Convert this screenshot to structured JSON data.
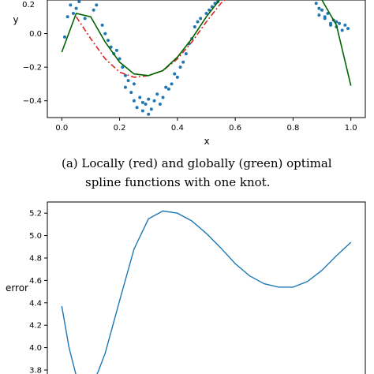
{
  "caption": {
    "line1": "(a) Locally (red) and globally (green) optimal",
    "line2": "spline functions with one knot."
  },
  "chart_data": [
    {
      "type": "scatter",
      "xlabel": "x",
      "ylabel": "y",
      "xlim": [
        -0.05,
        1.05
      ],
      "ylim": [
        -0.5,
        0.2
      ],
      "xticks": [
        0.0,
        0.2,
        0.4,
        0.6,
        0.8,
        1.0
      ],
      "xtick_labels": [
        "0.0",
        "0.2",
        "0.4",
        "0.6",
        "0.8",
        "1.0"
      ],
      "yticks": [
        0.0,
        -0.2,
        -0.4
      ],
      "ytick_labels": [
        "0.0",
        "−0.2",
        "−0.4"
      ],
      "partial_top_label": "0.2",
      "grid": false,
      "colors": {
        "points": "#1f77b4",
        "local": "#d62728",
        "global": "#006400"
      },
      "series": [
        {
          "kind": "points",
          "x": [
            0.01,
            0.02,
            0.03,
            0.04,
            0.05,
            0.06,
            0.08,
            0.1,
            0.11,
            0.12,
            0.14,
            0.15,
            0.16,
            0.17,
            0.18,
            0.19,
            0.2,
            0.21,
            0.22,
            0.22,
            0.23,
            0.24,
            0.25,
            0.25,
            0.26,
            0.27,
            0.28,
            0.28,
            0.29,
            0.3,
            0.3,
            0.31,
            0.32,
            0.33,
            0.34,
            0.35,
            0.36,
            0.37,
            0.38,
            0.39,
            0.4,
            0.41,
            0.42,
            0.43,
            0.44,
            0.45,
            0.46,
            0.47,
            0.48,
            0.5,
            0.51,
            0.52,
            0.53,
            0.54,
            0.88,
            0.89,
            0.9,
            0.91,
            0.92,
            0.93,
            0.94,
            0.95,
            0.96,
            0.97,
            0.98,
            0.99,
            0.89,
            0.91,
            0.95,
            0.93
          ],
          "y": [
            -0.02,
            0.1,
            0.17,
            0.12,
            0.15,
            0.19,
            0.09,
            0.21,
            0.14,
            0.17,
            0.05,
            0.0,
            -0.04,
            -0.08,
            -0.12,
            -0.1,
            -0.15,
            -0.2,
            -0.25,
            -0.32,
            -0.28,
            -0.35,
            -0.4,
            -0.3,
            -0.44,
            -0.38,
            -0.46,
            -0.41,
            -0.42,
            -0.39,
            -0.48,
            -0.45,
            -0.4,
            -0.36,
            -0.42,
            -0.38,
            -0.32,
            -0.33,
            -0.3,
            -0.24,
            -0.26,
            -0.2,
            -0.17,
            -0.12,
            -0.06,
            -0.03,
            0.04,
            0.07,
            0.09,
            0.12,
            0.14,
            0.16,
            0.18,
            0.19,
            0.18,
            0.15,
            0.14,
            0.1,
            0.12,
            0.06,
            0.08,
            0.04,
            0.06,
            0.02,
            0.05,
            0.03,
            0.11,
            0.09,
            0.07,
            0.05
          ]
        },
        {
          "kind": "line",
          "style": "dashdot",
          "x": [
            0.05,
            0.1,
            0.15,
            0.2,
            0.25,
            0.3,
            0.35,
            0.4,
            0.45,
            0.5,
            0.55,
            0.6
          ],
          "y": [
            0.1,
            -0.03,
            -0.15,
            -0.23,
            -0.26,
            -0.25,
            -0.22,
            -0.15,
            -0.05,
            0.07,
            0.18,
            0.25
          ]
        },
        {
          "kind": "line",
          "style": "solid",
          "x": [
            0.0,
            0.05,
            0.1,
            0.15,
            0.2,
            0.25,
            0.3,
            0.35,
            0.4,
            0.45,
            0.5,
            0.55,
            0.6
          ],
          "y": [
            -0.11,
            0.12,
            0.1,
            -0.05,
            -0.17,
            -0.24,
            -0.25,
            -0.22,
            -0.14,
            -0.03,
            0.1,
            0.21,
            0.3
          ]
        },
        {
          "kind": "line",
          "style": "solid",
          "x": [
            0.85,
            0.9,
            0.95,
            1.0
          ],
          "y": [
            0.28,
            0.2,
            0.05,
            -0.31
          ]
        }
      ]
    },
    {
      "type": "line",
      "ylabel": "error",
      "xlim": [
        -0.05,
        1.05
      ],
      "ylim": [
        3.68,
        5.3
      ],
      "yticks": [
        3.8,
        4.0,
        4.2,
        4.4,
        4.6,
        4.8,
        5.0,
        5.2
      ],
      "ytick_labels": [
        "3.8",
        "4.0",
        "4.2",
        "4.4",
        "4.6",
        "4.8",
        "5.0",
        "5.2"
      ],
      "grid": false,
      "colors": {
        "line": "#1f77b4"
      },
      "series": [
        {
          "kind": "line",
          "x": [
            0.0,
            0.025,
            0.05,
            0.075,
            0.1,
            0.125,
            0.15,
            0.2,
            0.25,
            0.3,
            0.35,
            0.4,
            0.45,
            0.5,
            0.55,
            0.6,
            0.65,
            0.7,
            0.75,
            0.8,
            0.85,
            0.9,
            0.95,
            1.0
          ],
          "y": [
            4.37,
            4.0,
            3.75,
            3.66,
            3.66,
            3.78,
            3.95,
            4.42,
            4.88,
            5.15,
            5.22,
            5.2,
            5.13,
            5.02,
            4.89,
            4.75,
            4.64,
            4.57,
            4.54,
            4.54,
            4.59,
            4.69,
            4.82,
            4.94
          ]
        }
      ]
    }
  ]
}
